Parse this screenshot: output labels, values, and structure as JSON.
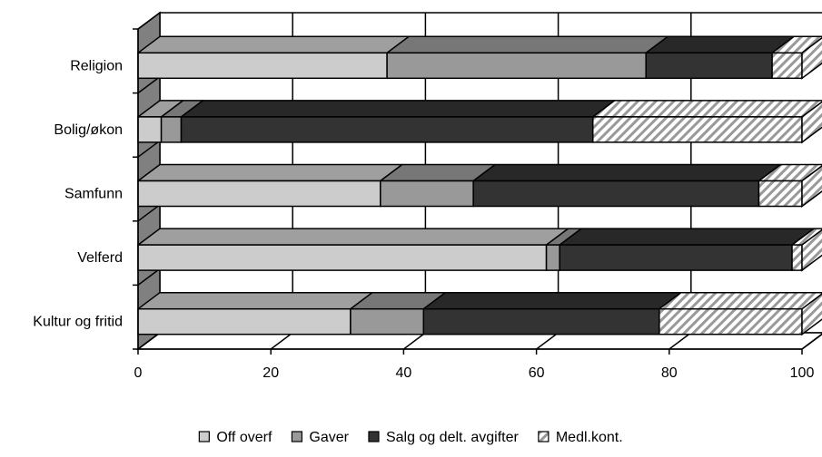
{
  "chart_data": {
    "type": "bar",
    "orientation": "horizontal",
    "stacked": true,
    "three_d": true,
    "categories": [
      "Religion",
      "Bolig/økon",
      "Samfunn",
      "Velferd",
      "Kultur og fritid"
    ],
    "series": [
      {
        "name": "Off overf",
        "values": [
          37.5,
          3.5,
          36.5,
          61.5,
          32
        ],
        "color": "#cccccc",
        "pattern": "solid"
      },
      {
        "name": "Gaver",
        "values": [
          39,
          3,
          14,
          2,
          11
        ],
        "color": "#999999",
        "pattern": "solid"
      },
      {
        "name": "Salg og delt. avgifter",
        "values": [
          19,
          62,
          43,
          35,
          35.5
        ],
        "color": "#333333",
        "pattern": "solid"
      },
      {
        "name": "Medl.kont.",
        "values": [
          4.5,
          31.5,
          6.5,
          1.5,
          21.5
        ],
        "color": "#999999",
        "pattern": "hatch"
      }
    ],
    "x_ticks": [
      "0",
      "20",
      "40",
      "60",
      "80",
      "100"
    ],
    "xlim": [
      0,
      100
    ],
    "grid": true,
    "legend_position": "bottom"
  }
}
